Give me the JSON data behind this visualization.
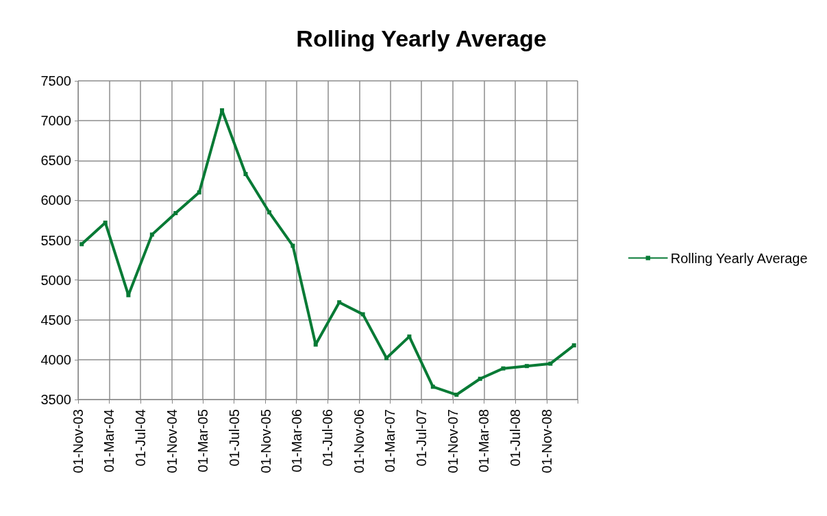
{
  "chart_data": {
    "type": "line",
    "title": "Rolling Yearly Average",
    "x": [
      "2003-11-15",
      "2004-02-15",
      "2004-05-15",
      "2004-08-15",
      "2004-11-15",
      "2005-02-15",
      "2005-05-15",
      "2005-08-15",
      "2005-11-15",
      "2006-02-15",
      "2006-05-15",
      "2006-08-15",
      "2006-11-15",
      "2007-02-15",
      "2007-05-15",
      "2007-08-15",
      "2007-11-15",
      "2008-02-15",
      "2008-05-15",
      "2008-08-15",
      "2008-11-15",
      "2009-02-15"
    ],
    "series": [
      {
        "name": "Rolling Yearly Average",
        "color": "#077a35",
        "values": [
          5450,
          5720,
          4810,
          5570,
          5840,
          6100,
          7130,
          6330,
          5850,
          5430,
          4190,
          4720,
          4570,
          4020,
          4290,
          3660,
          3560,
          3760,
          3890,
          3920,
          3950,
          4180
        ]
      }
    ],
    "xlim": [
      "2003-11-01",
      "2009-03-01"
    ],
    "xticks": [
      {
        "value": "2003-11-01",
        "label": "01-Nov-03"
      },
      {
        "value": "2004-03-01",
        "label": "01-Mar-04"
      },
      {
        "value": "2004-07-01",
        "label": "01-Jul-04"
      },
      {
        "value": "2004-11-01",
        "label": "01-Nov-04"
      },
      {
        "value": "2005-03-01",
        "label": "01-Mar-05"
      },
      {
        "value": "2005-07-01",
        "label": "01-Jul-05"
      },
      {
        "value": "2005-11-01",
        "label": "01-Nov-05"
      },
      {
        "value": "2006-03-01",
        "label": "01-Mar-06"
      },
      {
        "value": "2006-07-01",
        "label": "01-Jul-06"
      },
      {
        "value": "2006-11-01",
        "label": "01-Nov-06"
      },
      {
        "value": "2007-03-01",
        "label": "01-Mar-07"
      },
      {
        "value": "2007-07-01",
        "label": "01-Jul-07"
      },
      {
        "value": "2007-11-01",
        "label": "01-Nov-07"
      },
      {
        "value": "2008-03-01",
        "label": "01-Mar-08"
      },
      {
        "value": "2008-07-01",
        "label": "01-Jul-08"
      },
      {
        "value": "2008-11-01",
        "label": "01-Nov-08"
      },
      {
        "value": "2009-03-01",
        "label": null
      }
    ],
    "ylim": [
      3500,
      7500
    ],
    "yticks": [
      3500,
      4000,
      4500,
      5000,
      5500,
      6000,
      6500,
      7000,
      7500
    ],
    "grid": true,
    "legend": "right",
    "marker": "square",
    "line_style": "solid"
  }
}
